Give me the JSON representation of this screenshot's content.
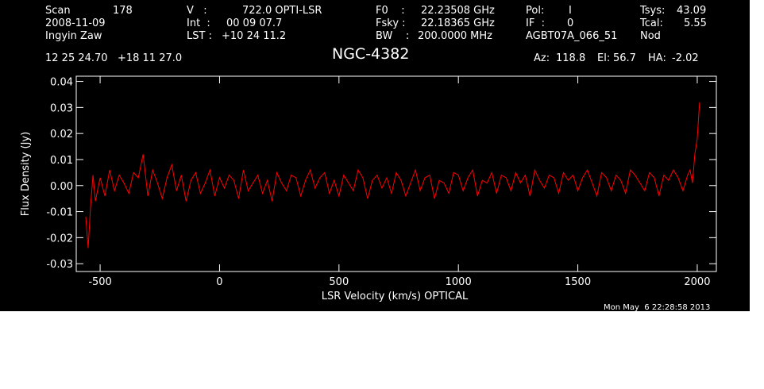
{
  "header": {
    "scan_label": "Scan",
    "scan_value": "178",
    "date": "2008-11-09",
    "observer": "Ingyin Zaw",
    "v_label": "V   :",
    "v_value": "722.0 OPTI-LSR",
    "int_label": "Int  :",
    "int_value": "00 09 07.7",
    "lst_label": "LST : ",
    "lst_value": "+10 24 11.2",
    "f0_label": "F0    :",
    "f0_value": "22.23508 GHz",
    "fsky_label": "Fsky :",
    "fsky_value": "22.18365 GHz",
    "bw_label": "BW    :",
    "bw_value": "200.0000 MHz",
    "pol_label": "Pol:",
    "pol_value": "I",
    "if_label": "IF  :",
    "if_value": "0",
    "project": "AGBT07A_066_51",
    "tsys_label": "Tsys:",
    "tsys_value": "43.09",
    "tcal_label": "Tcal:",
    "tcal_value": "5.55",
    "mode": "Nod",
    "coords": "12 25 24.70   +18 11 27.0",
    "source": "NGC-4382",
    "az_label": "Az:",
    "az_value": "118.8",
    "el_label": "El:",
    "el_value": "56.7",
    "ha_label": "HA:",
    "ha_value": "-2.02",
    "timestamp": "Mon May  6 22:28:58 2013"
  },
  "colors": {
    "background": "#000000",
    "trace": "#ff0000",
    "axes": "#ffffff"
  },
  "chart_data": {
    "type": "line",
    "title": "NGC-4382",
    "xlabel": "LSR Velocity (km/s) OPTICAL",
    "ylabel": "Flux Density (Jy)",
    "xlim": [
      -600,
      2080
    ],
    "ylim": [
      -0.033,
      0.042
    ],
    "xticks": [
      -500,
      0,
      500,
      1000,
      1500,
      2000
    ],
    "xtick_labels": [
      "-500",
      "0",
      "500",
      "1000",
      "1500",
      "2000"
    ],
    "yticks": [
      -0.03,
      -0.02,
      -0.01,
      0.0,
      0.01,
      0.02,
      0.03,
      0.04
    ],
    "ytick_labels": [
      "-0.03",
      "-0.02",
      "-0.01",
      "0.00",
      "0.01",
      "0.02",
      "0.03",
      "0.04"
    ],
    "grid": false,
    "series": [
      {
        "color": "#ff0000",
        "x": [
          -560,
          -550,
          -540,
          -530,
          -520,
          -500,
          -480,
          -460,
          -440,
          -420,
          -400,
          -380,
          -360,
          -340,
          -320,
          -300,
          -280,
          -260,
          -240,
          -220,
          -200,
          -180,
          -160,
          -140,
          -120,
          -100,
          -80,
          -60,
          -40,
          -20,
          0,
          20,
          40,
          60,
          80,
          100,
          120,
          140,
          160,
          180,
          200,
          220,
          240,
          260,
          280,
          300,
          320,
          340,
          360,
          380,
          400,
          420,
          440,
          460,
          480,
          500,
          520,
          540,
          560,
          580,
          600,
          620,
          640,
          660,
          680,
          700,
          720,
          740,
          760,
          780,
          800,
          820,
          840,
          860,
          880,
          900,
          920,
          940,
          960,
          980,
          1000,
          1020,
          1040,
          1060,
          1080,
          1100,
          1120,
          1140,
          1160,
          1180,
          1200,
          1220,
          1240,
          1260,
          1280,
          1300,
          1320,
          1340,
          1360,
          1380,
          1400,
          1420,
          1440,
          1460,
          1480,
          1500,
          1520,
          1540,
          1560,
          1580,
          1600,
          1620,
          1640,
          1660,
          1680,
          1700,
          1720,
          1740,
          1760,
          1780,
          1800,
          1820,
          1840,
          1860,
          1880,
          1900,
          1920,
          1940,
          1960,
          1970,
          1980,
          1990,
          2000,
          2005,
          2010
        ],
        "y": [
          -0.012,
          -0.024,
          -0.008,
          0.004,
          -0.006,
          0.003,
          -0.004,
          0.006,
          -0.002,
          0.004,
          0.001,
          -0.003,
          0.005,
          0.003,
          0.012,
          -0.004,
          0.006,
          0.001,
          -0.005,
          0.003,
          0.008,
          -0.002,
          0.004,
          -0.006,
          0.002,
          0.005,
          -0.003,
          0.001,
          0.006,
          -0.004,
          0.003,
          -0.001,
          0.004,
          0.002,
          -0.005,
          0.006,
          -0.002,
          0.001,
          0.004,
          -0.003,
          0.002,
          -0.006,
          0.005,
          0.001,
          -0.002,
          0.004,
          0.003,
          -0.004,
          0.002,
          0.006,
          -0.001,
          0.003,
          0.005,
          -0.003,
          0.002,
          -0.004,
          0.004,
          0.001,
          -0.002,
          0.006,
          0.003,
          -0.005,
          0.002,
          0.004,
          -0.001,
          0.003,
          -0.003,
          0.005,
          0.002,
          -0.004,
          0.001,
          0.006,
          -0.002,
          0.003,
          0.004,
          -0.005,
          0.002,
          0.001,
          -0.003,
          0.005,
          0.004,
          -0.002,
          0.003,
          0.006,
          -0.004,
          0.002,
          0.001,
          0.005,
          -0.003,
          0.004,
          0.003,
          -0.002,
          0.005,
          0.001,
          0.004,
          -0.004,
          0.006,
          0.002,
          -0.001,
          0.004,
          0.003,
          -0.003,
          0.005,
          0.002,
          0.004,
          -0.002,
          0.003,
          0.006,
          0.001,
          -0.004,
          0.005,
          0.003,
          -0.002,
          0.004,
          0.002,
          -0.003,
          0.006,
          0.004,
          0.001,
          -0.002,
          0.005,
          0.003,
          -0.004,
          0.004,
          0.002,
          0.006,
          0.003,
          -0.002,
          0.004,
          0.006,
          0.001,
          0.012,
          0.018,
          0.025,
          0.032
        ]
      }
    ]
  }
}
